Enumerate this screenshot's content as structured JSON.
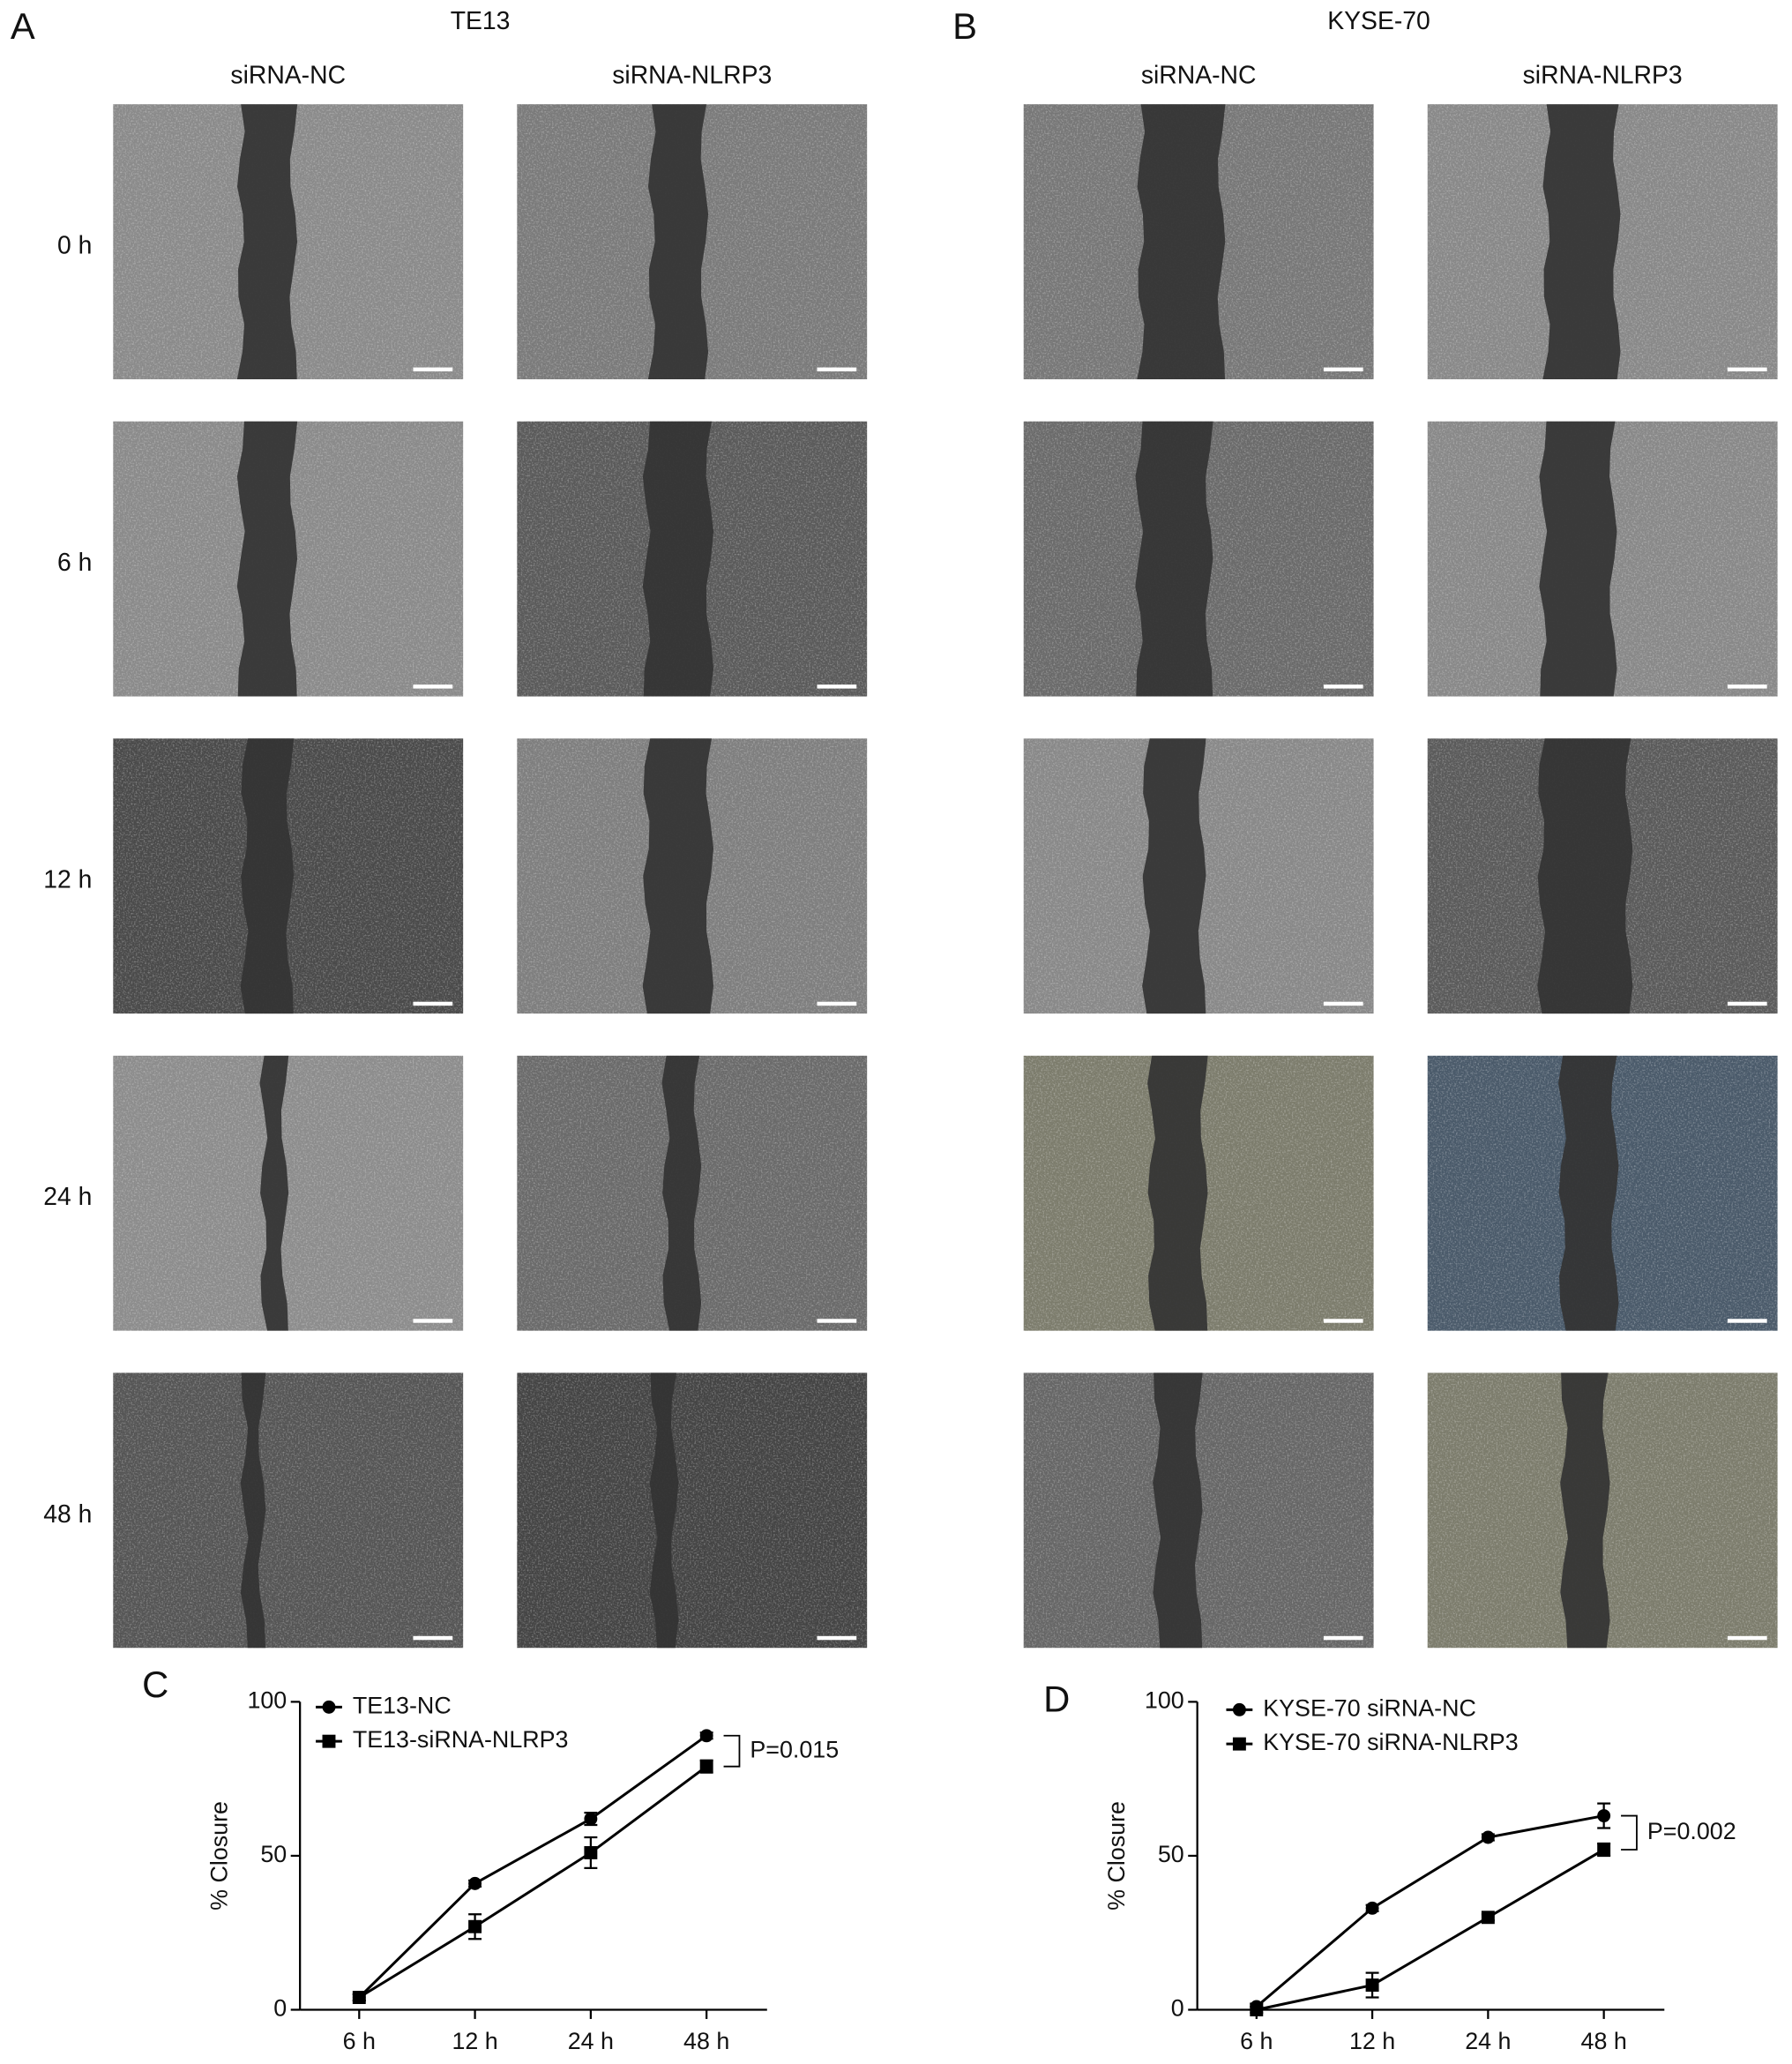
{
  "panels": [
    {
      "label": "A",
      "title": "TE13",
      "columns": [
        "siRNA-NC",
        "siRNA-NLRP3"
      ],
      "rows": [
        "0 h",
        "6 h",
        "12 h",
        "24 h",
        "48 h"
      ]
    },
    {
      "label": "B",
      "title": "KYSE-70",
      "columns": [
        "siRNA-NC",
        "siRNA-NLRP3"
      ]
    }
  ],
  "chart_data": [
    {
      "type": "line",
      "label": "C",
      "y_label": "% Closure",
      "categories": [
        "6 h",
        "12 h",
        "24 h",
        "48 h"
      ],
      "series": [
        {
          "name": "TE13-NC",
          "color": "#000000",
          "marker": "circle",
          "values": [
            4,
            41,
            62,
            89
          ],
          "errors": [
            1,
            1,
            2,
            1
          ]
        },
        {
          "name": "TE13-siRNA-NLRP3",
          "color": "#000000",
          "marker": "square",
          "values": [
            4,
            27,
            51,
            79
          ],
          "errors": [
            1,
            4,
            5,
            2
          ]
        }
      ],
      "annotation": "P=0.015",
      "ylim": [
        0,
        100
      ],
      "yticks": [
        0,
        50,
        100
      ]
    },
    {
      "type": "line",
      "label": "D",
      "y_label": "% Closure",
      "categories": [
        "6 h",
        "12 h",
        "24 h",
        "48 h"
      ],
      "series": [
        {
          "name": "KYSE-70 siRNA-NC",
          "color": "#000000",
          "marker": "circle",
          "values": [
            1,
            33,
            56,
            63
          ],
          "errors": [
            1,
            1,
            1,
            4
          ]
        },
        {
          "name": "KYSE-70 siRNA-NLRP3",
          "color": "#000000",
          "marker": "square",
          "values": [
            0,
            8,
            30,
            52
          ],
          "errors": [
            1,
            4,
            1,
            2
          ]
        }
      ],
      "annotation": "P=0.002",
      "ylim": [
        0,
        100
      ],
      "yticks": [
        0,
        50,
        100
      ]
    }
  ]
}
